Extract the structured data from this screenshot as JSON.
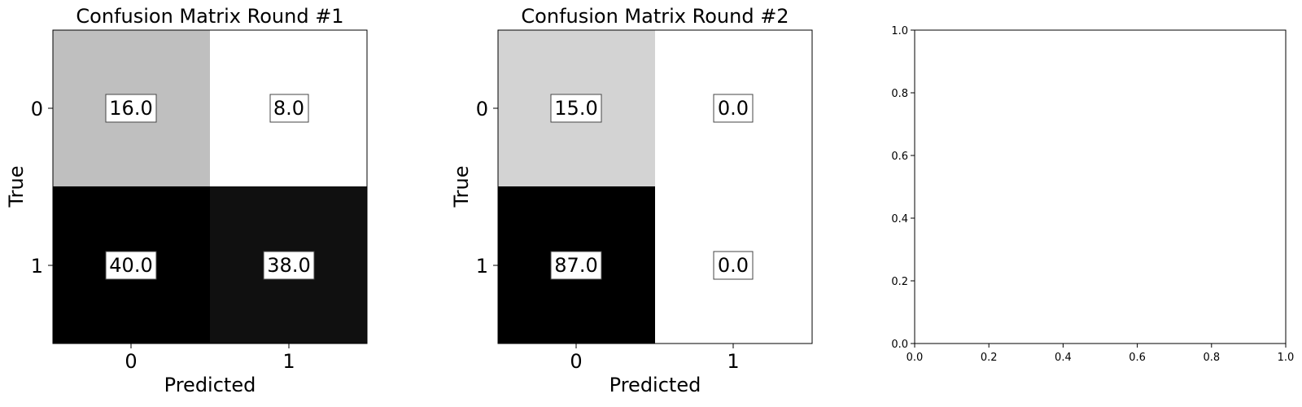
{
  "chart_data": [
    {
      "type": "heatmap",
      "title": "Confusion Matrix Round #1",
      "xlabel": "Predicted",
      "ylabel": "True",
      "x_tick_labels": [
        "0",
        "1"
      ],
      "y_tick_labels": [
        "0",
        "1"
      ],
      "cell_labels": [
        [
          "16.0",
          "8.0"
        ],
        [
          "40.0",
          "38.0"
        ]
      ],
      "values": [
        [
          16.0,
          8.0
        ],
        [
          40.0,
          38.0
        ]
      ],
      "colormap": "gray_r",
      "cell_colors": [
        [
          "#bfbfbf",
          "#ffffff"
        ],
        [
          "#000000",
          "#101010"
        ]
      ]
    },
    {
      "type": "heatmap",
      "title": "Confusion Matrix Round #2",
      "xlabel": "Predicted",
      "ylabel": "True",
      "x_tick_labels": [
        "0",
        "1"
      ],
      "y_tick_labels": [
        "0",
        "1"
      ],
      "cell_labels": [
        [
          "15.0",
          "0.0"
        ],
        [
          "87.0",
          "0.0"
        ]
      ],
      "values": [
        [
          15.0,
          0.0
        ],
        [
          87.0,
          0.0
        ]
      ],
      "colormap": "gray_r",
      "cell_colors": [
        [
          "#d3d3d3",
          "#ffffff"
        ],
        [
          "#000000",
          "#ffffff"
        ]
      ]
    },
    {
      "type": "line",
      "title": "",
      "xlabel": "",
      "ylabel": "",
      "xlim": [
        0.0,
        1.0
      ],
      "ylim": [
        0.0,
        1.0
      ],
      "x_tick_labels": [
        "0.0",
        "0.2",
        "0.4",
        "0.6",
        "0.8",
        "1.0"
      ],
      "y_tick_labels": [
        "0.0",
        "0.2",
        "0.4",
        "0.6",
        "0.8",
        "1.0"
      ],
      "series": []
    }
  ]
}
